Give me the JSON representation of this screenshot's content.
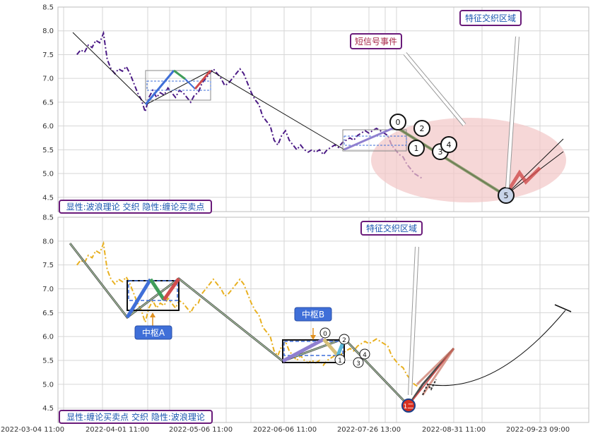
{
  "chart_data": [
    {
      "type": "line",
      "panel": "top",
      "ylim": [
        4.2,
        8.5
      ],
      "yticks": [
        4.5,
        5.0,
        5.5,
        6.0,
        6.5,
        7.0,
        7.5,
        8.0,
        8.5
      ],
      "grid": true,
      "series": [
        {
          "style": "dash-dot",
          "color": "#4b1a85",
          "points": [
            [
              0,
              7.5
            ],
            [
              1,
              7.6
            ],
            [
              2,
              7.55
            ],
            [
              3,
              7.7
            ],
            [
              4,
              7.65
            ],
            [
              5,
              7.8
            ],
            [
              6,
              7.75
            ],
            [
              7,
              7.95
            ],
            [
              8,
              7.4
            ],
            [
              9,
              7.2
            ],
            [
              10,
              7.1
            ],
            [
              11,
              7.2
            ],
            [
              12,
              7.15
            ],
            [
              13,
              7.25
            ],
            [
              14,
              7.1
            ],
            [
              15,
              6.9
            ],
            [
              16,
              6.7
            ],
            [
              17,
              6.55
            ],
            [
              18,
              6.3
            ],
            [
              19,
              6.6
            ],
            [
              20,
              6.75
            ],
            [
              21,
              6.6
            ],
            [
              22,
              6.7
            ],
            [
              23,
              6.65
            ],
            [
              24,
              6.8
            ],
            [
              25,
              6.7
            ],
            [
              26,
              6.6
            ],
            [
              27,
              6.75
            ],
            [
              28,
              6.7
            ],
            [
              29,
              6.6
            ],
            [
              30,
              6.5
            ],
            [
              31,
              6.65
            ],
            [
              32,
              6.7
            ],
            [
              33,
              6.9
            ],
            [
              34,
              7.0
            ],
            [
              35,
              7.1
            ],
            [
              36,
              7.2
            ],
            [
              37,
              7.1
            ],
            [
              38,
              7.0
            ],
            [
              39,
              6.85
            ],
            [
              40,
              6.9
            ],
            [
              41,
              7.0
            ],
            [
              42,
              7.1
            ],
            [
              43,
              7.2
            ],
            [
              44,
              7.1
            ],
            [
              45,
              6.9
            ],
            [
              46,
              6.7
            ],
            [
              47,
              6.55
            ],
            [
              48,
              6.45
            ],
            [
              49,
              6.2
            ],
            [
              50,
              6.1
            ],
            [
              51,
              6.0
            ],
            [
              52,
              5.7
            ],
            [
              53,
              5.6
            ],
            [
              54,
              5.8
            ],
            [
              55,
              5.9
            ],
            [
              56,
              5.7
            ],
            [
              57,
              5.6
            ],
            [
              58,
              5.5
            ],
            [
              59,
              5.6
            ],
            [
              60,
              5.5
            ],
            [
              61,
              5.45
            ],
            [
              62,
              5.5
            ],
            [
              63,
              5.45
            ],
            [
              64,
              5.5
            ],
            [
              65,
              5.4
            ],
            [
              66,
              5.5
            ],
            [
              67,
              5.55
            ],
            [
              68,
              5.6
            ],
            [
              69,
              5.55
            ],
            [
              70,
              5.65
            ],
            [
              71,
              5.7
            ],
            [
              72,
              5.75
            ],
            [
              73,
              5.7
            ],
            [
              74,
              5.8
            ],
            [
              75,
              5.85
            ],
            [
              76,
              5.9
            ],
            [
              77,
              5.85
            ],
            [
              78,
              5.9
            ],
            [
              79,
              5.95
            ],
            [
              80,
              5.9
            ],
            [
              81,
              5.85
            ],
            [
              82,
              5.8
            ],
            [
              83,
              5.6
            ],
            [
              84,
              5.5
            ],
            [
              85,
              5.4
            ],
            [
              86,
              5.35
            ],
            [
              87,
              5.2
            ],
            [
              88,
              5.1
            ],
            [
              89,
              5.0
            ],
            [
              90,
              4.95
            ],
            [
              91,
              4.9
            ]
          ]
        }
      ]
    },
    {
      "type": "line",
      "panel": "bottom",
      "ylim": [
        4.2,
        8.5
      ],
      "yticks": [
        4.5,
        5.0,
        5.5,
        6.0,
        6.5,
        7.0,
        7.5,
        8.0,
        8.5
      ],
      "grid": true,
      "x_tick_labels": [
        "2022-03-04 11:00",
        "2022-04-01 11:00",
        "2022-05-06 11:00",
        "2022-06-06 11:00",
        "2022-07-26 13:00",
        "2022-08-31 11:00",
        "2022-09-23 09:00"
      ],
      "series": [
        {
          "style": "dash-dot",
          "color": "#e8b020",
          "points": [
            [
              0,
              7.5
            ],
            [
              1,
              7.6
            ],
            [
              2,
              7.55
            ],
            [
              3,
              7.7
            ],
            [
              4,
              7.65
            ],
            [
              5,
              7.8
            ],
            [
              6,
              7.75
            ],
            [
              7,
              7.95
            ],
            [
              8,
              7.4
            ],
            [
              9,
              7.2
            ],
            [
              10,
              7.1
            ],
            [
              11,
              7.2
            ],
            [
              12,
              7.15
            ],
            [
              13,
              7.25
            ],
            [
              14,
              7.1
            ],
            [
              15,
              6.9
            ],
            [
              16,
              6.7
            ],
            [
              17,
              6.55
            ],
            [
              18,
              6.3
            ],
            [
              19,
              6.6
            ],
            [
              20,
              6.75
            ],
            [
              21,
              6.6
            ],
            [
              22,
              6.7
            ],
            [
              23,
              6.65
            ],
            [
              24,
              6.8
            ],
            [
              25,
              6.7
            ],
            [
              26,
              6.6
            ],
            [
              27,
              6.75
            ],
            [
              28,
              6.7
            ],
            [
              29,
              6.6
            ],
            [
              30,
              6.5
            ],
            [
              31,
              6.65
            ],
            [
              32,
              6.7
            ],
            [
              33,
              6.9
            ],
            [
              34,
              7.0
            ],
            [
              35,
              7.1
            ],
            [
              36,
              7.2
            ],
            [
              37,
              7.1
            ],
            [
              38,
              7.0
            ],
            [
              39,
              6.85
            ],
            [
              40,
              6.9
            ],
            [
              41,
              7.0
            ],
            [
              42,
              7.1
            ],
            [
              43,
              7.2
            ],
            [
              44,
              7.1
            ],
            [
              45,
              6.9
            ],
            [
              46,
              6.7
            ],
            [
              47,
              6.55
            ],
            [
              48,
              6.45
            ],
            [
              49,
              6.2
            ],
            [
              50,
              6.1
            ],
            [
              51,
              6.0
            ],
            [
              52,
              5.7
            ],
            [
              53,
              5.6
            ],
            [
              54,
              5.8
            ],
            [
              55,
              5.9
            ],
            [
              56,
              5.7
            ],
            [
              57,
              5.6
            ],
            [
              58,
              5.5
            ],
            [
              59,
              5.6
            ],
            [
              60,
              5.5
            ],
            [
              61,
              5.45
            ],
            [
              62,
              5.5
            ],
            [
              63,
              5.45
            ],
            [
              64,
              5.5
            ],
            [
              65,
              5.4
            ],
            [
              66,
              5.5
            ],
            [
              67,
              5.55
            ],
            [
              68,
              5.6
            ],
            [
              69,
              5.55
            ],
            [
              70,
              5.65
            ],
            [
              71,
              5.7
            ],
            [
              72,
              5.75
            ],
            [
              73,
              5.7
            ],
            [
              74,
              5.8
            ],
            [
              75,
              5.85
            ],
            [
              76,
              5.9
            ],
            [
              77,
              5.85
            ],
            [
              78,
              5.9
            ],
            [
              79,
              5.95
            ],
            [
              80,
              5.9
            ],
            [
              81,
              5.85
            ],
            [
              82,
              5.8
            ],
            [
              83,
              5.6
            ],
            [
              84,
              5.5
            ],
            [
              85,
              5.4
            ],
            [
              86,
              5.35
            ],
            [
              87,
              5.2
            ],
            [
              88,
              5.1
            ],
            [
              89,
              5.0
            ],
            [
              90,
              4.95
            ],
            [
              91,
              4.9
            ]
          ]
        }
      ]
    }
  ],
  "labels": {
    "top_legend": "显性:波浪理论 交织 隐性:缠论买卖点",
    "top_feature_zone": "特征交织区域",
    "top_short_signal": "短信号事件",
    "bottom_legend": "显性:缠论买卖点 交织 隐性:波浪理论",
    "bottom_feature_zone": "特征交织区域",
    "pivot_a": "中枢A",
    "pivot_b": "中枢B",
    "wave_labels_top": [
      "0",
      "1",
      "2",
      "3",
      "4",
      "5"
    ],
    "wave_labels_bottom": [
      "0",
      "1",
      "2",
      "3",
      "4"
    ],
    "buy_point_mark": "1二"
  },
  "colors": {
    "top_series": "#4b1a85",
    "bottom_series": "#e8b020",
    "tag_border": "#6a1b7a",
    "highlight_ellipse": "#f2c6c6",
    "pivot_box_fill": "#3f6fd8"
  }
}
